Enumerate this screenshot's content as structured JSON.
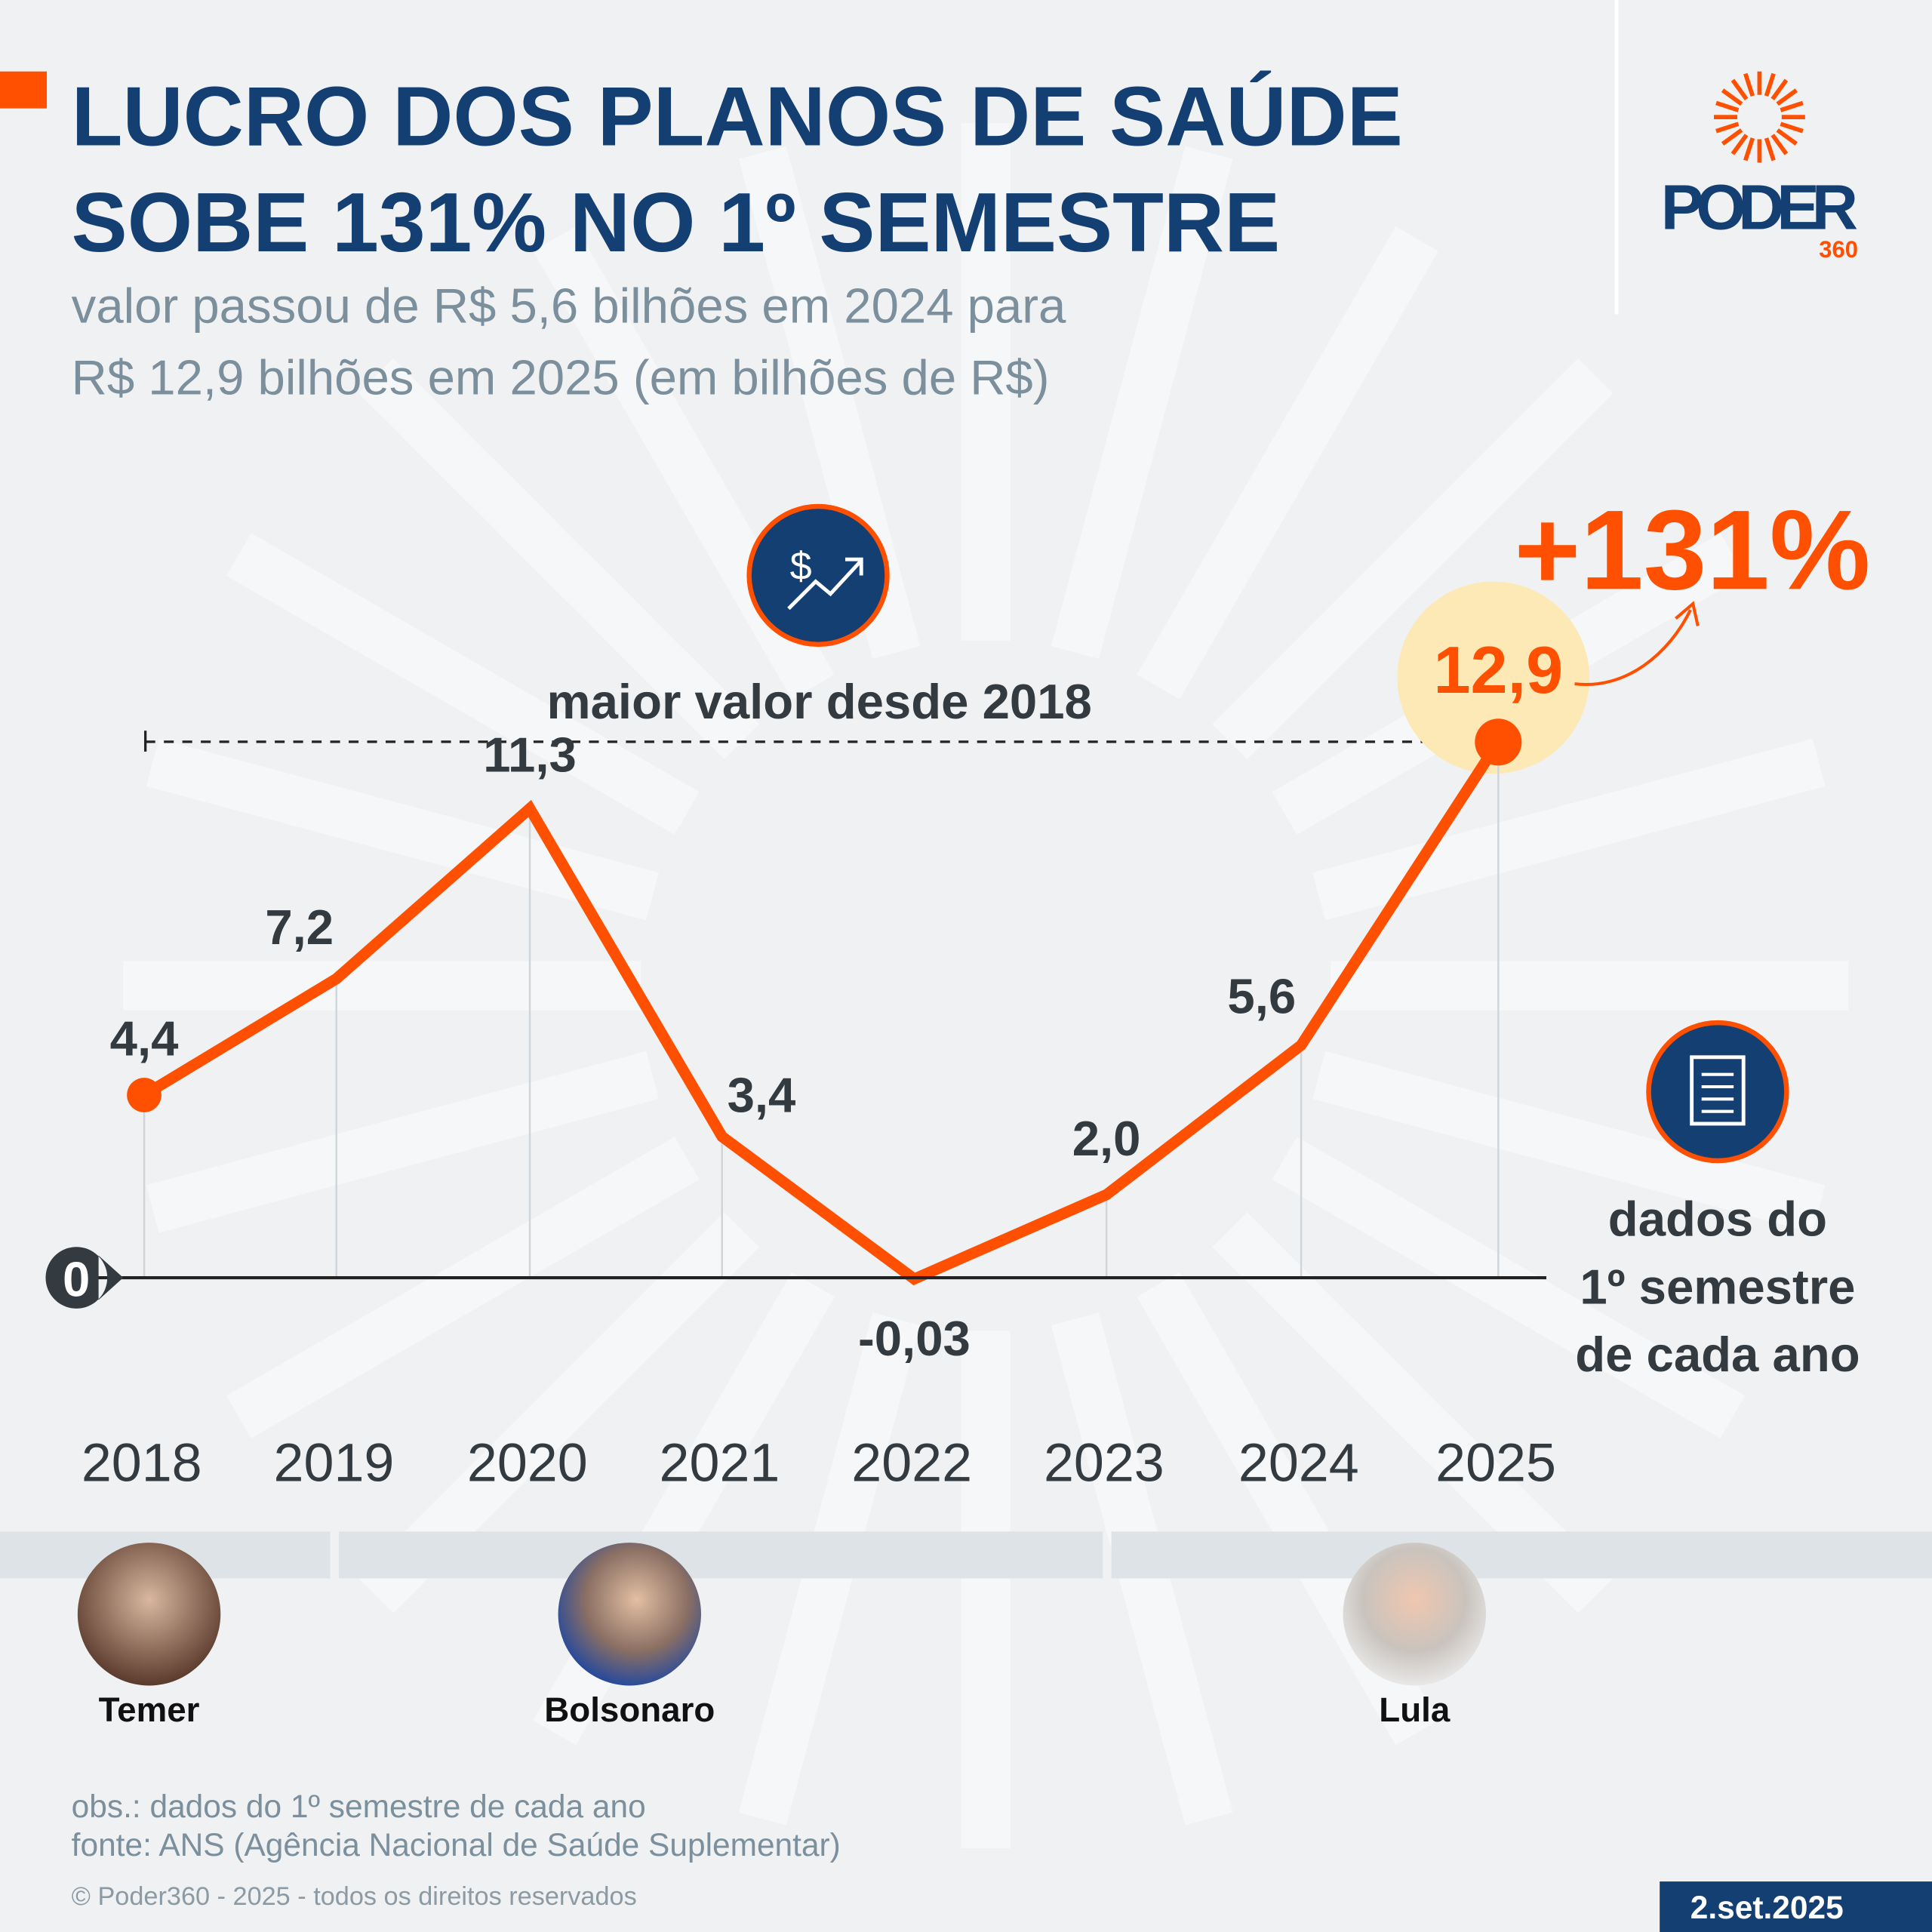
{
  "header": {
    "title_line1": "LUCRO DOS PLANOS DE SAÚDE",
    "title_line2": "SOBE 131% NO 1º SEMESTRE",
    "subtitle_line1": "valor passou de R$ 5,6 bilhões em 2024 para",
    "subtitle_line2": "R$ 12,9 bilhões em 2025 (em bilhões de R$)"
  },
  "logo": {
    "name": "PODER",
    "number": "360"
  },
  "colors": {
    "accent": "#fe5000",
    "navy": "#133f73",
    "text": "#333a40",
    "subtitle": "#7b8f9c",
    "highlight": "#fde9b5",
    "background": "#eff1f3"
  },
  "icons": {
    "top": "dollar-trend-up-icon",
    "side": "document-icon"
  },
  "annotations": {
    "max_label": "maior valor desde 2018",
    "change": "+131%",
    "note_line1": "dados do",
    "note_line2": "1º semestre",
    "note_line3": "de cada ano",
    "zero_label": "0"
  },
  "chart_data": {
    "type": "line",
    "categories": [
      "2018",
      "2019",
      "2020",
      "2021",
      "2022",
      "2023",
      "2024",
      "2025"
    ],
    "values": [
      4.4,
      7.2,
      11.3,
      3.4,
      -0.03,
      2.0,
      5.6,
      12.9
    ],
    "labels": [
      "4,4",
      "7,2",
      "11,3",
      "3,4",
      "-0,03",
      "2,0",
      "5,6",
      "12,9"
    ],
    "ylabel": "",
    "xlabel": "",
    "grid": false
  },
  "governments": [
    {
      "name": "Temer"
    },
    {
      "name": "Bolsonaro"
    },
    {
      "name": "Lula"
    }
  ],
  "footer": {
    "obs": "obs.: dados do 1º semestre de cada ano",
    "source": "fonte: ANS (Agência Nacional de Saúde Suplementar)",
    "copyright": "© Poder360 - 2025 - todos os direitos reservados",
    "date": "2.set.2025"
  }
}
